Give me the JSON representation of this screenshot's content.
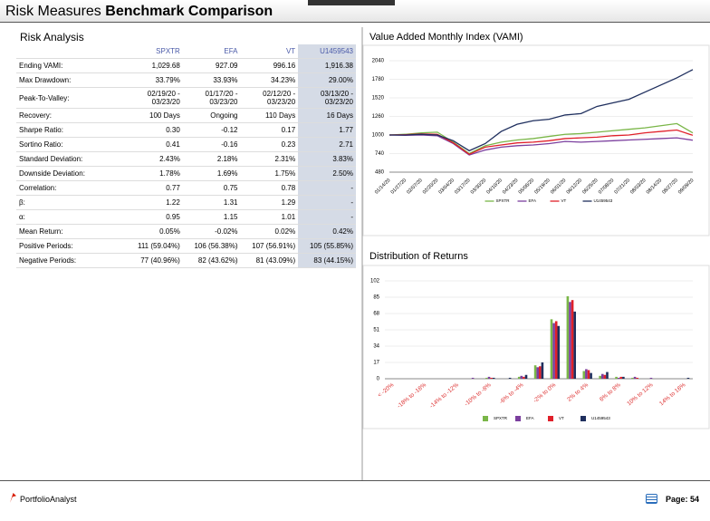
{
  "header": {
    "title_plain": "Risk Measures",
    "title_bold": "Benchmark Comparison"
  },
  "table": {
    "title": "Risk Analysis",
    "columns": [
      "SPXTR",
      "EFA",
      "VT",
      "U1459543"
    ],
    "rows": [
      [
        "Ending VAMI:",
        "1,029.68",
        "927.09",
        "996.16",
        "1,916.38"
      ],
      [
        "Max Drawdown:",
        "33.79%",
        "33.93%",
        "34.23%",
        "29.00%"
      ],
      [
        "Peak-To-Valley:",
        "02/19/20 - 03/23/20",
        "01/17/20 - 03/23/20",
        "02/12/20 - 03/23/20",
        "03/13/20 - 03/23/20"
      ],
      [
        "Recovery:",
        "100 Days",
        "Ongoing",
        "110 Days",
        "16 Days"
      ],
      [
        "Sharpe Ratio:",
        "0.30",
        "-0.12",
        "0.17",
        "1.77"
      ],
      [
        "Sortino Ratio:",
        "0.41",
        "-0.16",
        "0.23",
        "2.71"
      ],
      [
        "Standard Deviation:",
        "2.43%",
        "2.18%",
        "2.31%",
        "3.83%"
      ],
      [
        "Downside Deviation:",
        "1.78%",
        "1.69%",
        "1.75%",
        "2.50%"
      ],
      [
        "Correlation:",
        "0.77",
        "0.75",
        "0.78",
        "-"
      ],
      [
        "β:",
        "1.22",
        "1.31",
        "1.29",
        "-"
      ],
      [
        "α:",
        "0.95",
        "1.15",
        "1.01",
        "-"
      ],
      [
        "Mean Return:",
        "0.05%",
        "-0.02%",
        "0.02%",
        "0.42%"
      ],
      [
        "Positive Periods:",
        "111 (59.04%)",
        "106 (56.38%)",
        "107 (56.91%)",
        "105 (55.85%)"
      ],
      [
        "Negative Periods:",
        "77 (40.96%)",
        "82 (43.62%)",
        "81 (43.09%)",
        "83 (44.15%)"
      ]
    ]
  },
  "chart_data": [
    {
      "type": "line",
      "title": "Value Added Monthly Index (VAMI)",
      "categories": [
        "01/14/20",
        "01/27/20",
        "02/07/20",
        "02/20/20",
        "03/04/20",
        "03/17/20",
        "03/30/20",
        "04/10/20",
        "04/23/20",
        "05/06/20",
        "05/19/20",
        "06/01/20",
        "06/12/20",
        "06/25/20",
        "07/08/20",
        "07/21/20",
        "08/03/20",
        "08/14/20",
        "08/27/20",
        "09/09/20"
      ],
      "series": [
        {
          "name": "SPXTR",
          "color": "#7ab648",
          "values": [
            1000,
            1010,
            1030,
            1040,
            900,
            740,
            850,
            900,
            930,
            950,
            980,
            1010,
            1020,
            1040,
            1060,
            1080,
            1100,
            1130,
            1160,
            1030
          ]
        },
        {
          "name": "EFA",
          "color": "#7b3f9e",
          "values": [
            1000,
            995,
            1000,
            990,
            880,
            720,
            790,
            830,
            850,
            860,
            880,
            910,
            900,
            910,
            920,
            930,
            940,
            950,
            960,
            927
          ]
        },
        {
          "name": "VT",
          "color": "#e0202a",
          "values": [
            1000,
            1005,
            1015,
            1010,
            890,
            730,
            830,
            860,
            890,
            900,
            920,
            950,
            960,
            970,
            990,
            1000,
            1030,
            1050,
            1070,
            996
          ]
        },
        {
          "name": "U1459543",
          "color": "#1f2f5e",
          "values": [
            1000,
            1000,
            1010,
            1000,
            920,
            780,
            880,
            1050,
            1150,
            1200,
            1220,
            1280,
            1300,
            1400,
            1450,
            1500,
            1600,
            1700,
            1800,
            1916
          ]
        }
      ],
      "ylim": [
        480,
        2040
      ],
      "yticks": [
        480,
        740,
        1000,
        1260,
        1520,
        1780,
        2040
      ]
    },
    {
      "type": "bar",
      "title": "Distribution of Returns",
      "categories": [
        "< -20%",
        null,
        "-18% to -16%",
        null,
        "-14% to -12%",
        null,
        "-10% to -8%",
        null,
        "-6% to -4%",
        null,
        "-2% to 0%",
        null,
        "2% to 4%",
        null,
        "6% to 8%",
        null,
        "10% to 12%",
        null,
        "14% to 16%"
      ],
      "series": [
        {
          "name": "SPXTR",
          "color": "#7ab648",
          "values": [
            0,
            0,
            0,
            0,
            0,
            0,
            1,
            0,
            2,
            14,
            62,
            86,
            8,
            3,
            2,
            1,
            0,
            0,
            0
          ]
        },
        {
          "name": "EFA",
          "color": "#7b3f9e",
          "values": [
            0,
            0,
            0,
            0,
            0,
            1,
            2,
            0,
            3,
            12,
            58,
            80,
            10,
            5,
            1,
            2,
            1,
            0,
            0
          ]
        },
        {
          "name": "VT",
          "color": "#e0202a",
          "values": [
            0,
            0,
            0,
            0,
            0,
            0,
            1,
            0,
            2,
            13,
            60,
            82,
            9,
            4,
            2,
            1,
            0,
            0,
            0
          ]
        },
        {
          "name": "U1459543",
          "color": "#1f2f5e",
          "values": [
            0,
            0,
            0,
            0,
            0,
            0,
            1,
            1,
            4,
            17,
            55,
            70,
            6,
            7,
            2,
            0,
            0,
            0,
            1
          ]
        }
      ],
      "ylim": [
        0,
        102
      ],
      "yticks": [
        0,
        17,
        34,
        51,
        68,
        85,
        102
      ]
    }
  ],
  "footer": {
    "brand": "PortfolioAnalyst",
    "page": "Page: 54"
  }
}
